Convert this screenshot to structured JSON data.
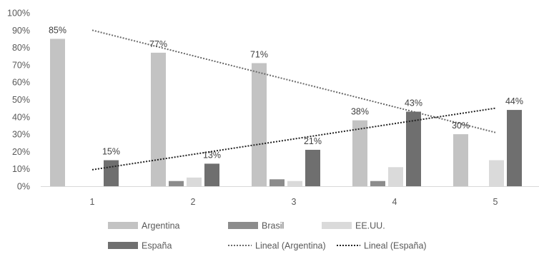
{
  "chart_data": {
    "type": "bar",
    "title": "",
    "xlabel": "",
    "ylabel": "",
    "categories": [
      "1",
      "2",
      "3",
      "4",
      "5"
    ],
    "ylim": [
      0,
      100
    ],
    "ytick_step": 10,
    "y_unit_suffix": "%",
    "grid": false,
    "legend_position": "bottom",
    "series": [
      {
        "name": "Argentina",
        "color": "#c3c3c3",
        "values": [
          85,
          77,
          71,
          38,
          30
        ]
      },
      {
        "name": "Brasil",
        "color": "#8c8c8c",
        "values": [
          0,
          3,
          4,
          3,
          0
        ]
      },
      {
        "name": "EE.UU.",
        "color": "#dadada",
        "values": [
          0,
          5,
          3,
          11,
          15
        ]
      },
      {
        "name": "España",
        "color": "#6f6f6f",
        "values": [
          15,
          13,
          21,
          43,
          44
        ]
      }
    ],
    "data_labels": [
      {
        "series": "Argentina",
        "category": "1",
        "text": "85%"
      },
      {
        "series": "Argentina",
        "category": "2",
        "text": "77%"
      },
      {
        "series": "Argentina",
        "category": "3",
        "text": "71%"
      },
      {
        "series": "Argentina",
        "category": "4",
        "text": "38%"
      },
      {
        "series": "Argentina",
        "category": "5",
        "text": "30%"
      },
      {
        "series": "España",
        "category": "1",
        "text": "15%"
      },
      {
        "series": "España",
        "category": "2",
        "text": "13%"
      },
      {
        "series": "España",
        "category": "3",
        "text": "21%"
      },
      {
        "series": "España",
        "category": "4",
        "text": "43%"
      },
      {
        "series": "España",
        "category": "5",
        "text": "44%"
      }
    ],
    "trendlines": [
      {
        "name": "Lineal (Argentina)",
        "series": "Argentina",
        "color": "#6a6a6a",
        "start": 90,
        "end": 31
      },
      {
        "name": "Lineal (España)",
        "series": "España",
        "color": "#222222",
        "start": 9.5,
        "end": 45
      }
    ]
  }
}
